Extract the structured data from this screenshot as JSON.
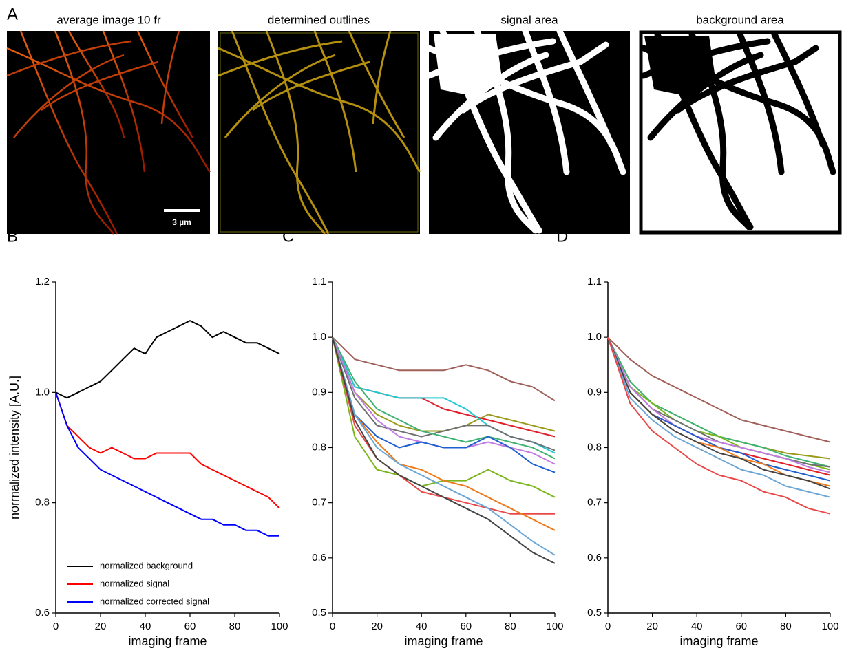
{
  "panel_labels": [
    "A",
    "B",
    "C",
    "D"
  ],
  "images": {
    "titles": [
      "average image 10 fr",
      "determined outlines",
      "signal area",
      "background area"
    ],
    "scale_bar": "3 µm"
  },
  "chart_data": [
    {
      "type": "line",
      "xlabel": "imaging frame",
      "ylabel": "normalized intensity [A.U.]",
      "xlim": [
        0,
        100
      ],
      "xticks": [
        0,
        20,
        40,
        60,
        80,
        100
      ],
      "ylim": [
        0.6,
        1.2
      ],
      "yticks": [
        0.6,
        0.8,
        {
          "value": 1,
          "label": "1.0"
        },
        1.2
      ],
      "legend": "lower left",
      "x": [
        0,
        5,
        10,
        15,
        20,
        25,
        30,
        35,
        40,
        45,
        50,
        55,
        60,
        65,
        70,
        75,
        80,
        85,
        90,
        95,
        100
      ],
      "series": [
        {
          "name": "normalized background",
          "color": "#000000",
          "values": [
            1.0,
            0.99,
            1.0,
            1.01,
            1.02,
            1.04,
            1.06,
            1.08,
            1.07,
            1.1,
            1.11,
            1.12,
            1.13,
            1.12,
            1.1,
            1.11,
            1.1,
            1.09,
            1.09,
            1.08,
            1.07
          ]
        },
        {
          "name": "normalized signal",
          "color": "#ff0000",
          "values": [
            1.0,
            0.94,
            0.92,
            0.9,
            0.89,
            0.9,
            0.89,
            0.88,
            0.88,
            0.89,
            0.89,
            0.89,
            0.89,
            0.87,
            0.86,
            0.85,
            0.84,
            0.83,
            0.82,
            0.81,
            0.79
          ]
        },
        {
          "name": "normalized corrected signal",
          "color": "#0000ff",
          "values": [
            1.0,
            0.94,
            0.9,
            0.88,
            0.86,
            0.85,
            0.84,
            0.83,
            0.82,
            0.81,
            0.8,
            0.79,
            0.78,
            0.77,
            0.77,
            0.76,
            0.76,
            0.75,
            0.75,
            0.74,
            0.74
          ]
        }
      ]
    },
    {
      "type": "line",
      "xlabel": "imaging frame",
      "xlim": [
        0,
        100
      ],
      "xticks": [
        0,
        20,
        40,
        60,
        80,
        100
      ],
      "ylim": [
        0.5,
        1.1
      ],
      "yticks": [
        0.5,
        0.6,
        0.7,
        0.8,
        0.9,
        {
          "value": 1,
          "label": "1.0"
        },
        1.1
      ],
      "x": [
        0,
        10,
        20,
        30,
        40,
        50,
        60,
        70,
        80,
        90,
        100
      ],
      "series": [
        {
          "color": "#a0605a",
          "values": [
            1.0,
            0.96,
            0.95,
            0.94,
            0.94,
            0.94,
            0.95,
            0.94,
            0.92,
            0.91,
            0.885
          ]
        },
        {
          "color": "#9a9a1a",
          "values": [
            1.0,
            0.9,
            0.86,
            0.84,
            0.83,
            0.83,
            0.84,
            0.86,
            0.85,
            0.84,
            0.83
          ]
        },
        {
          "color": "#e0202a",
          "values": [
            1.0,
            0.91,
            0.9,
            0.89,
            0.89,
            0.87,
            0.86,
            0.85,
            0.84,
            0.83,
            0.82
          ]
        },
        {
          "color": "#20c8d0",
          "values": [
            1.0,
            0.91,
            0.9,
            0.89,
            0.89,
            0.89,
            0.87,
            0.84,
            0.82,
            0.81,
            0.79
          ]
        },
        {
          "color": "#707070",
          "values": [
            1.0,
            0.89,
            0.84,
            0.83,
            0.82,
            0.83,
            0.84,
            0.84,
            0.82,
            0.81,
            0.795
          ]
        },
        {
          "color": "#3cb371",
          "values": [
            1.0,
            0.92,
            0.87,
            0.85,
            0.83,
            0.82,
            0.81,
            0.82,
            0.81,
            0.8,
            0.78
          ]
        },
        {
          "color": "#c07ce0",
          "values": [
            1.0,
            0.9,
            0.85,
            0.82,
            0.81,
            0.8,
            0.8,
            0.81,
            0.8,
            0.79,
            0.77
          ]
        },
        {
          "color": "#1f5fd0",
          "values": [
            1.0,
            0.86,
            0.82,
            0.8,
            0.81,
            0.8,
            0.8,
            0.82,
            0.8,
            0.77,
            0.755
          ]
        },
        {
          "color": "#7ab51d",
          "values": [
            1.0,
            0.82,
            0.76,
            0.75,
            0.73,
            0.74,
            0.74,
            0.76,
            0.74,
            0.73,
            0.71
          ]
        },
        {
          "color": "#e84848",
          "values": [
            1.0,
            0.84,
            0.78,
            0.75,
            0.72,
            0.71,
            0.7,
            0.69,
            0.68,
            0.68,
            0.68
          ]
        },
        {
          "color": "#f07a1a",
          "values": [
            1.0,
            0.86,
            0.81,
            0.77,
            0.76,
            0.74,
            0.73,
            0.71,
            0.69,
            0.67,
            0.65
          ]
        },
        {
          "color": "#6aa6d6",
          "values": [
            1.0,
            0.86,
            0.8,
            0.77,
            0.75,
            0.73,
            0.71,
            0.69,
            0.66,
            0.63,
            0.605
          ]
        },
        {
          "color": "#444444",
          "values": [
            1.0,
            0.85,
            0.78,
            0.75,
            0.73,
            0.71,
            0.69,
            0.67,
            0.64,
            0.61,
            0.59
          ]
        }
      ]
    },
    {
      "type": "line",
      "xlabel": "imaging frame",
      "xlim": [
        0,
        100
      ],
      "xticks": [
        0,
        20,
        40,
        60,
        80,
        100
      ],
      "ylim": [
        0.5,
        1.1
      ],
      "yticks": [
        0.5,
        0.6,
        0.7,
        0.8,
        0.9,
        {
          "value": 1,
          "label": "1.0"
        },
        1.1
      ],
      "x": [
        0,
        10,
        20,
        30,
        40,
        50,
        60,
        70,
        80,
        90,
        100
      ],
      "series": [
        {
          "color": "#a0605a",
          "values": [
            1.0,
            0.96,
            0.93,
            0.91,
            0.89,
            0.87,
            0.85,
            0.84,
            0.83,
            0.82,
            0.81
          ]
        },
        {
          "color": "#9a9a1a",
          "values": [
            1.0,
            0.92,
            0.88,
            0.86,
            0.84,
            0.82,
            0.81,
            0.8,
            0.79,
            0.785,
            0.78
          ]
        },
        {
          "color": "#3cb371",
          "values": [
            1.0,
            0.92,
            0.88,
            0.86,
            0.84,
            0.82,
            0.81,
            0.8,
            0.785,
            0.775,
            0.765
          ]
        },
        {
          "color": "#7ab51d",
          "values": [
            1.0,
            0.91,
            0.88,
            0.85,
            0.83,
            0.82,
            0.8,
            0.79,
            0.78,
            0.77,
            0.76
          ]
        },
        {
          "color": "#707070",
          "values": [
            1.0,
            0.91,
            0.87,
            0.85,
            0.83,
            0.81,
            0.8,
            0.79,
            0.78,
            0.77,
            0.765
          ]
        },
        {
          "color": "#c07ce0",
          "values": [
            1.0,
            0.91,
            0.87,
            0.84,
            0.82,
            0.81,
            0.8,
            0.79,
            0.78,
            0.765,
            0.755
          ]
        },
        {
          "color": "#e0202a",
          "values": [
            1.0,
            0.9,
            0.86,
            0.84,
            0.82,
            0.8,
            0.79,
            0.78,
            0.77,
            0.76,
            0.75
          ]
        },
        {
          "color": "#1f5fd0",
          "values": [
            1.0,
            0.9,
            0.86,
            0.84,
            0.82,
            0.8,
            0.79,
            0.77,
            0.76,
            0.75,
            0.74
          ]
        },
        {
          "color": "#f07a1a",
          "values": [
            1.0,
            0.9,
            0.86,
            0.83,
            0.81,
            0.8,
            0.78,
            0.77,
            0.75,
            0.74,
            0.73
          ]
        },
        {
          "color": "#444444",
          "values": [
            1.0,
            0.9,
            0.86,
            0.83,
            0.81,
            0.79,
            0.78,
            0.76,
            0.75,
            0.74,
            0.725
          ]
        },
        {
          "color": "#6aa6d6",
          "values": [
            1.0,
            0.89,
            0.85,
            0.82,
            0.8,
            0.78,
            0.76,
            0.75,
            0.73,
            0.72,
            0.71
          ]
        },
        {
          "color": "#e84848",
          "values": [
            1.0,
            0.88,
            0.83,
            0.8,
            0.77,
            0.75,
            0.74,
            0.72,
            0.71,
            0.69,
            0.68
          ]
        }
      ]
    }
  ]
}
